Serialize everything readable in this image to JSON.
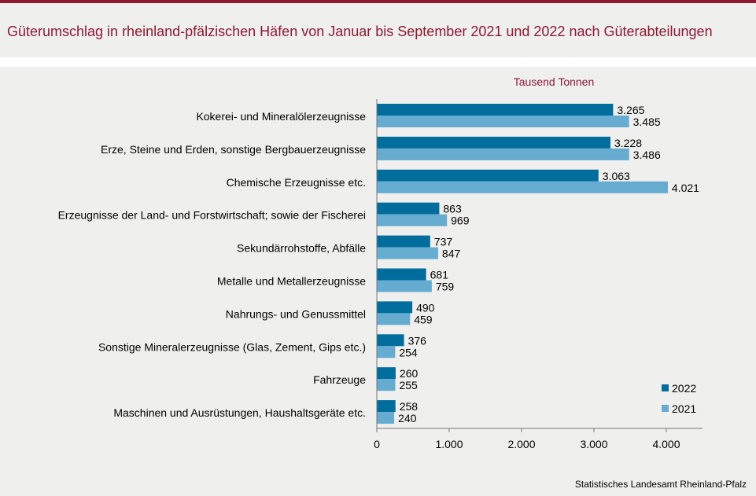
{
  "title": "Güterumschlag in rheinland-pfälzischen Häfen von Januar bis September 2021 und 2022 nach Güterabteilungen",
  "source": "Statistisches Landesamt Rheinland-Pfalz",
  "colors": {
    "brand": "#8c1a33",
    "series2022": "#006d9c",
    "series2021": "#66abd0"
  },
  "chart_data": {
    "type": "bar",
    "orientation": "horizontal",
    "unit_label": "Tausend  Tonnen",
    "categories": [
      "Kokerei- und Mineralölerzeugnisse",
      "Erze, Steine und Erden, sonstige Bergbauerzeugnisse",
      "Chemische Erzeugnisse etc.",
      "Erzeugnisse der Land- und Forstwirtschaft; sowie der Fischerei",
      "Sekundärrohstoffe, Abfälle",
      "Metalle und Metallerzeugnisse",
      "Nahrungs- und Genussmittel",
      "Sonstige Mineralerzeugnisse (Glas, Zement, Gips etc.)",
      "Fahrzeuge",
      "Maschinen und Ausrüstungen, Haushaltsgeräte etc."
    ],
    "series": [
      {
        "name": "2022",
        "color": "#006d9c",
        "values": [
          3265,
          3228,
          3063,
          863,
          737,
          681,
          490,
          376,
          260,
          258
        ],
        "labels": [
          "3.265",
          "3.228",
          "3.063",
          "863",
          "737",
          "681",
          "490",
          "376",
          "260",
          "258"
        ]
      },
      {
        "name": "2021",
        "color": "#66abd0",
        "values": [
          3485,
          3486,
          4021,
          969,
          847,
          759,
          459,
          254,
          255,
          240
        ],
        "labels": [
          "3.485",
          "3.486",
          "4.021",
          "969",
          "847",
          "759",
          "459",
          "254",
          "255",
          "240"
        ]
      }
    ],
    "xlim": [
      0,
      4500
    ],
    "ticks": [
      0,
      1000,
      2000,
      3000,
      4000
    ],
    "tick_labels": [
      "0",
      "1.000",
      "2.000",
      "3.000",
      "4.000"
    ],
    "legend_position": "bottom-right",
    "grid": false
  }
}
